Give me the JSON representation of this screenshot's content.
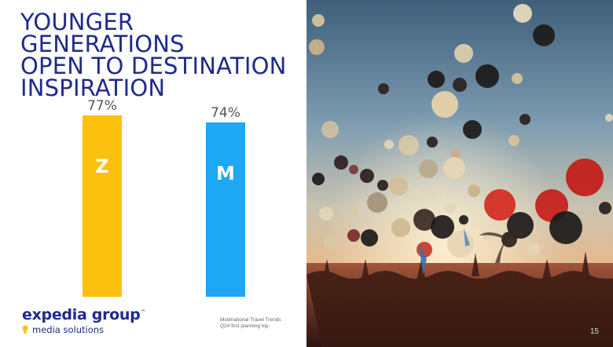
{
  "slide": {
    "title_lines": [
      "YOUNGER GENERATIONS",
      "OPEN TO DESTINATION",
      "INSPIRATION"
    ],
    "logo_main": "expedia group",
    "logo_tm": "™",
    "logo_sub": "media solutions",
    "source_line1": "Multinational Travel Trends",
    "source_line2": "Q24 first planning trip",
    "page_number": "15"
  },
  "colors": {
    "title": "#1f2a8c",
    "bar_z": "#fcc10f",
    "bar_m": "#1ea7f2",
    "logo_pin": "#fcc10f"
  },
  "chart_data": {
    "type": "bar",
    "categories": [
      "Z",
      "M"
    ],
    "values": [
      77,
      74
    ],
    "value_labels": [
      "77%",
      "74%"
    ],
    "colors": [
      "#fcc10f",
      "#1ea7f2"
    ],
    "title": "",
    "xlabel": "",
    "ylabel": "",
    "ylim": [
      0,
      100
    ],
    "grid": false
  },
  "photo": {
    "description_icon": "balloons-photo-icon"
  }
}
